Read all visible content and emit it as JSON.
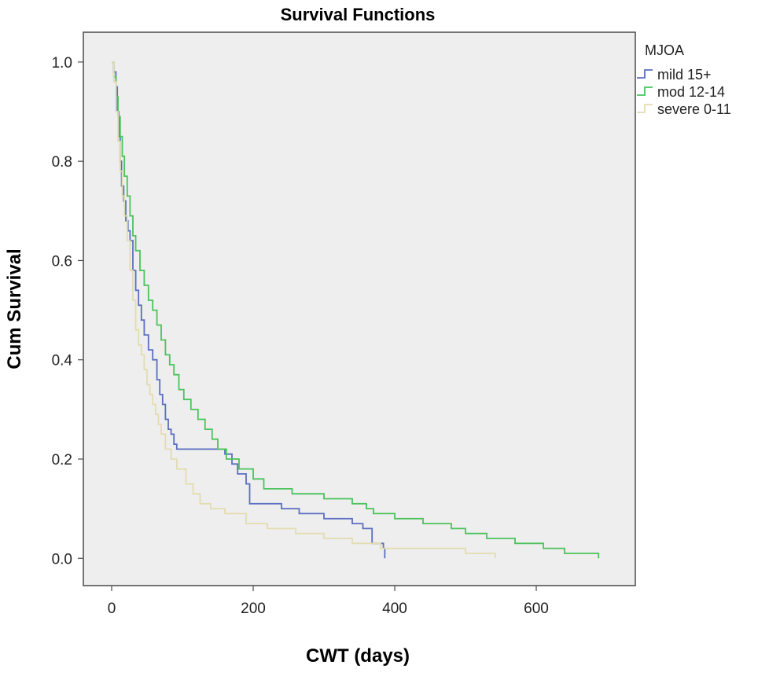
{
  "chart_data": {
    "type": "line",
    "title": "Survival Functions",
    "xlabel": "CWT (days)",
    "ylabel": "Cum Survival",
    "xlim": [
      -40,
      740
    ],
    "ylim": [
      -0.055,
      1.06
    ],
    "x_ticks": [
      0,
      200,
      400,
      600
    ],
    "x_tick_labels": [
      "0",
      "200",
      "400",
      "600"
    ],
    "y_ticks": [
      0.0,
      0.2,
      0.4,
      0.6,
      0.8,
      1.0
    ],
    "y_tick_labels": [
      "0.0",
      "0.2",
      "0.4",
      "0.6",
      "0.8",
      "1.0"
    ],
    "grid": false,
    "legend": {
      "title": "MJOA",
      "position": "top-right-outside"
    },
    "series": [
      {
        "name": "mild 15+",
        "color": "#5b6fc0",
        "steps": [
          [
            0,
            1.0
          ],
          [
            3,
            0.98
          ],
          [
            6,
            0.95
          ],
          [
            8,
            0.9
          ],
          [
            10,
            0.85
          ],
          [
            12,
            0.8
          ],
          [
            14,
            0.75
          ],
          [
            17,
            0.72
          ],
          [
            20,
            0.68
          ],
          [
            23,
            0.66
          ],
          [
            26,
            0.64
          ],
          [
            30,
            0.58
          ],
          [
            34,
            0.54
          ],
          [
            38,
            0.51
          ],
          [
            42,
            0.48
          ],
          [
            46,
            0.45
          ],
          [
            52,
            0.42
          ],
          [
            58,
            0.4
          ],
          [
            64,
            0.36
          ],
          [
            68,
            0.33
          ],
          [
            72,
            0.31
          ],
          [
            76,
            0.28
          ],
          [
            80,
            0.26
          ],
          [
            84,
            0.25
          ],
          [
            88,
            0.23
          ],
          [
            92,
            0.22
          ],
          [
            160,
            0.21
          ],
          [
            170,
            0.19
          ],
          [
            178,
            0.17
          ],
          [
            190,
            0.15
          ],
          [
            195,
            0.11
          ],
          [
            240,
            0.1
          ],
          [
            265,
            0.09
          ],
          [
            300,
            0.08
          ],
          [
            340,
            0.07
          ],
          [
            355,
            0.06
          ],
          [
            368,
            0.03
          ],
          [
            384,
            0.02
          ],
          [
            386,
            0.0
          ]
        ]
      },
      {
        "name": "mod 12-14",
        "color": "#4cc25c",
        "steps": [
          [
            0,
            1.0
          ],
          [
            3,
            0.97
          ],
          [
            6,
            0.93
          ],
          [
            9,
            0.89
          ],
          [
            12,
            0.85
          ],
          [
            15,
            0.81
          ],
          [
            18,
            0.77
          ],
          [
            22,
            0.73
          ],
          [
            26,
            0.69
          ],
          [
            30,
            0.65
          ],
          [
            34,
            0.62
          ],
          [
            40,
            0.58
          ],
          [
            46,
            0.55
          ],
          [
            52,
            0.52
          ],
          [
            58,
            0.5
          ],
          [
            64,
            0.47
          ],
          [
            70,
            0.44
          ],
          [
            76,
            0.41
          ],
          [
            82,
            0.39
          ],
          [
            88,
            0.37
          ],
          [
            95,
            0.34
          ],
          [
            102,
            0.32
          ],
          [
            112,
            0.3
          ],
          [
            122,
            0.28
          ],
          [
            132,
            0.26
          ],
          [
            142,
            0.24
          ],
          [
            150,
            0.22
          ],
          [
            162,
            0.2
          ],
          [
            180,
            0.18
          ],
          [
            200,
            0.16
          ],
          [
            215,
            0.14
          ],
          [
            255,
            0.13
          ],
          [
            300,
            0.12
          ],
          [
            340,
            0.11
          ],
          [
            360,
            0.1
          ],
          [
            370,
            0.09
          ],
          [
            400,
            0.08
          ],
          [
            440,
            0.07
          ],
          [
            480,
            0.06
          ],
          [
            500,
            0.05
          ],
          [
            530,
            0.04
          ],
          [
            570,
            0.03
          ],
          [
            610,
            0.02
          ],
          [
            640,
            0.01
          ],
          [
            688,
            0.0
          ]
        ]
      },
      {
        "name": "severe 0-11",
        "color": "#e3dcb0",
        "steps": [
          [
            0,
            1.0
          ],
          [
            3,
            0.96
          ],
          [
            6,
            0.9
          ],
          [
            9,
            0.84
          ],
          [
            12,
            0.78
          ],
          [
            15,
            0.73
          ],
          [
            18,
            0.69
          ],
          [
            22,
            0.64
          ],
          [
            26,
            0.58
          ],
          [
            30,
            0.52
          ],
          [
            34,
            0.46
          ],
          [
            38,
            0.43
          ],
          [
            42,
            0.41
          ],
          [
            46,
            0.38
          ],
          [
            50,
            0.35
          ],
          [
            54,
            0.33
          ],
          [
            58,
            0.31
          ],
          [
            62,
            0.29
          ],
          [
            66,
            0.27
          ],
          [
            70,
            0.25
          ],
          [
            76,
            0.22
          ],
          [
            84,
            0.2
          ],
          [
            92,
            0.18
          ],
          [
            105,
            0.15
          ],
          [
            115,
            0.13
          ],
          [
            125,
            0.11
          ],
          [
            140,
            0.1
          ],
          [
            160,
            0.09
          ],
          [
            190,
            0.07
          ],
          [
            220,
            0.06
          ],
          [
            260,
            0.05
          ],
          [
            300,
            0.04
          ],
          [
            340,
            0.03
          ],
          [
            380,
            0.02
          ],
          [
            480,
            0.02
          ],
          [
            500,
            0.01
          ],
          [
            540,
            0.01
          ],
          [
            542,
            0.0
          ]
        ]
      }
    ]
  }
}
